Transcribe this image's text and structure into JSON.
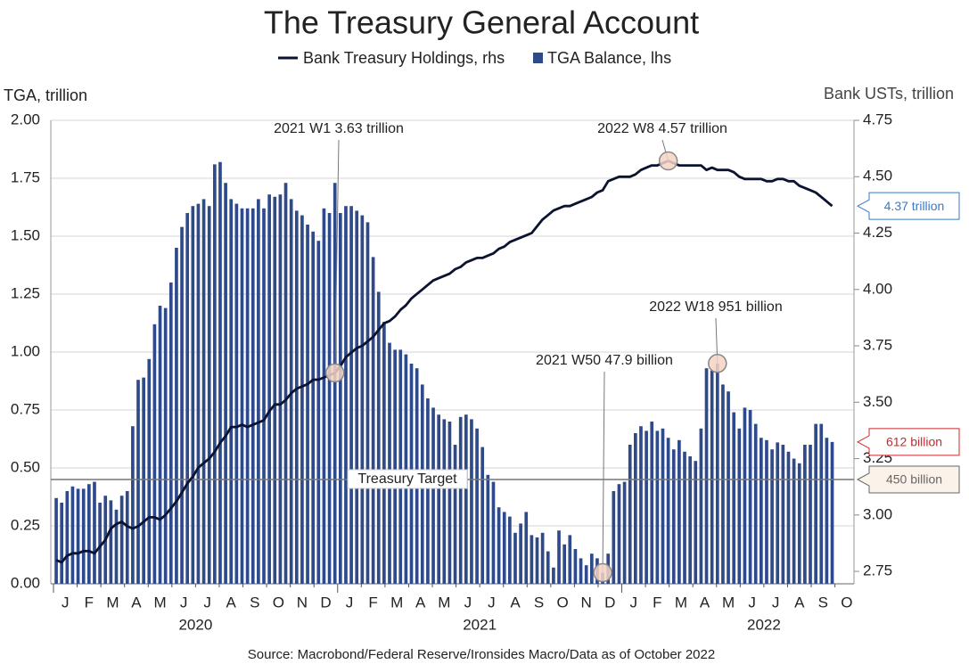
{
  "chart_data": {
    "type": "bar",
    "title": "The Treasury General Account",
    "y_label": "TGA, trillion",
    "y2_label": "Bank USTs, trillion",
    "source": "Source: Macrobond/Federal Reserve/Ironsides Macro/Data as of October 2022",
    "months": [
      "J",
      "F",
      "M",
      "A",
      "M",
      "J",
      "J",
      "A",
      "S",
      "O",
      "N",
      "D",
      "J",
      "F",
      "M",
      "A",
      "M",
      "J",
      "J",
      "A",
      "S",
      "O",
      "N",
      "D",
      "J",
      "F",
      "M",
      "A",
      "M",
      "J",
      "J",
      "A",
      "S",
      "O"
    ],
    "years": [
      "2020",
      "2021",
      "2022"
    ],
    "ylim": [
      0,
      2
    ],
    "yticks": [
      {
        "value": 0,
        "label": "0.00"
      },
      0.25,
      {
        "value": 0.5,
        "label": "0.50"
      },
      0.75,
      {
        "value": 1,
        "label": "1.00"
      },
      1.25,
      {
        "value": 1.5,
        "label": "1.50"
      },
      1.75,
      {
        "value": 2,
        "label": "2.00"
      }
    ],
    "y2lim": [
      2.695,
      4.75
    ],
    "y2ticks": [
      2.75,
      {
        "value": 3,
        "label": "3.00"
      },
      3.25,
      {
        "value": 3.5,
        "label": "3.50"
      },
      3.75,
      {
        "value": 4,
        "label": "4.00"
      },
      4.25,
      {
        "value": 4.5,
        "label": "4.50"
      },
      4.75
    ],
    "grid": true,
    "categories": [
      null,
      null,
      null,
      null,
      null,
      null,
      null,
      null,
      null,
      null,
      null,
      null,
      null,
      null,
      null,
      null,
      null,
      null,
      null,
      null,
      null,
      null,
      null,
      null,
      null,
      null,
      null,
      null,
      null,
      null,
      null,
      null,
      null,
      null,
      null,
      null,
      null,
      null,
      null,
      null,
      null,
      null,
      null,
      null,
      null,
      null,
      null,
      null,
      null,
      null,
      null,
      null,
      null,
      null,
      null,
      null,
      null,
      null,
      null,
      null,
      null,
      null,
      null,
      null,
      null,
      null,
      null,
      null,
      null,
      null,
      null,
      null,
      null,
      null,
      null,
      null,
      null,
      null,
      null,
      null,
      null,
      null,
      null,
      null,
      null,
      null,
      null,
      null,
      null,
      null,
      null,
      null,
      null,
      null,
      null,
      null,
      null,
      null,
      null,
      null,
      null,
      null,
      null,
      null,
      null,
      null,
      null,
      null,
      null,
      null,
      null,
      null,
      null,
      null,
      null,
      null,
      null,
      null,
      null,
      null,
      null,
      null,
      null,
      null,
      null,
      null,
      null,
      null,
      null,
      null,
      null,
      null,
      null,
      null,
      null,
      null,
      null,
      null,
      null,
      null,
      null,
      null,
      null
    ],
    "series": [
      {
        "name": "Bank Treasury Holdings, rhs",
        "type": "line",
        "axis": "y2",
        "color": "#0b1330",
        "values": [
          2.8,
          2.79,
          2.82,
          2.83,
          2.83,
          2.84,
          2.84,
          2.83,
          2.86,
          2.89,
          2.94,
          2.96,
          2.97,
          2.95,
          2.94,
          2.95,
          2.97,
          2.99,
          2.99,
          2.98,
          3.0,
          3.03,
          3.06,
          3.1,
          3.14,
          3.17,
          3.21,
          3.23,
          3.25,
          3.28,
          3.32,
          3.35,
          3.39,
          3.39,
          3.4,
          3.39,
          3.4,
          3.41,
          3.42,
          3.46,
          3.49,
          3.49,
          3.51,
          3.54,
          3.56,
          3.57,
          3.58,
          3.6,
          3.6,
          3.61,
          3.62,
          3.63,
          3.66,
          3.7,
          3.72,
          3.74,
          3.75,
          3.77,
          3.79,
          3.82,
          3.85,
          3.86,
          3.88,
          3.91,
          3.93,
          3.96,
          3.98,
          4.0,
          4.02,
          4.04,
          4.05,
          4.06,
          4.07,
          4.09,
          4.1,
          4.12,
          4.13,
          4.14,
          4.14,
          4.15,
          4.16,
          4.18,
          4.19,
          4.21,
          4.22,
          4.23,
          4.24,
          4.25,
          4.28,
          4.31,
          4.33,
          4.35,
          4.36,
          4.37,
          4.37,
          4.38,
          4.39,
          4.4,
          4.41,
          4.43,
          4.44,
          4.48,
          4.49,
          4.5,
          4.5,
          4.5,
          4.51,
          4.53,
          4.54,
          4.55,
          4.55,
          4.56,
          4.57,
          4.56,
          4.55,
          4.55,
          4.55,
          4.55,
          4.55,
          4.53,
          4.54,
          4.53,
          4.53,
          4.53,
          4.52,
          4.5,
          4.49,
          4.49,
          4.49,
          4.49,
          4.48,
          4.48,
          4.49,
          4.49,
          4.48,
          4.48,
          4.46,
          4.45,
          4.44,
          4.43,
          4.41,
          4.39,
          4.37
        ]
      },
      {
        "name": "TGA Balance, lhs",
        "type": "bar",
        "color": "#2e4a8b",
        "values": [
          0.37,
          0.35,
          0.4,
          0.42,
          0.41,
          0.41,
          0.43,
          0.44,
          0.35,
          0.38,
          0.36,
          0.32,
          0.38,
          0.4,
          0.68,
          0.88,
          0.89,
          0.97,
          1.12,
          1.2,
          1.19,
          1.3,
          1.45,
          1.54,
          1.6,
          1.63,
          1.64,
          1.66,
          1.63,
          1.81,
          1.82,
          1.73,
          1.66,
          1.64,
          1.62,
          1.62,
          1.62,
          1.66,
          1.62,
          1.68,
          1.67,
          1.68,
          1.73,
          1.66,
          1.61,
          1.59,
          1.55,
          1.52,
          1.48,
          1.62,
          1.6,
          1.73,
          1.6,
          1.63,
          1.63,
          1.61,
          1.59,
          1.56,
          1.41,
          1.26,
          1.13,
          1.04,
          1.01,
          1.01,
          0.99,
          0.95,
          0.93,
          0.86,
          0.8,
          0.76,
          0.73,
          0.71,
          0.7,
          0.6,
          0.72,
          0.73,
          0.71,
          0.67,
          0.59,
          0.47,
          0.44,
          0.33,
          0.31,
          0.29,
          0.22,
          0.26,
          0.31,
          0.21,
          0.2,
          0.22,
          0.14,
          0.07,
          0.23,
          0.17,
          0.21,
          0.15,
          0.11,
          0.08,
          0.13,
          0.11,
          0.0479,
          0.13,
          0.4,
          0.43,
          0.44,
          0.6,
          0.65,
          0.68,
          0.66,
          0.7,
          0.66,
          0.67,
          0.63,
          0.58,
          0.62,
          0.57,
          0.55,
          0.53,
          0.67,
          0.93,
          0.92,
          0.951,
          0.86,
          0.83,
          0.74,
          0.67,
          0.76,
          0.75,
          0.69,
          0.63,
          0.62,
          0.58,
          0.61,
          0.6,
          0.57,
          0.54,
          0.52,
          0.6,
          0.6,
          0.69,
          0.69,
          0.63,
          0.612
        ]
      }
    ],
    "target": {
      "label": "Treasury Target",
      "value": 0.45
    },
    "annotations": [
      {
        "label": "2021 W1 3.63 trillion",
        "value": 3.63
      },
      {
        "label": "2022 W8 4.57 trillion",
        "value": 4.57
      },
      {
        "label": "2021 W50 47.9 billion",
        "value": 0.0479
      },
      {
        "label": "2022 W18 951 billion",
        "value": 0.951
      }
    ],
    "callouts": [
      {
        "label": "4.37 trillion",
        "value": 4.37,
        "axis": "y2",
        "color": "#3a78c9"
      },
      {
        "label": "612 billion",
        "value": 0.612,
        "color": "#c8282e"
      },
      {
        "label": "450 billion",
        "value": 0.45,
        "color": "#666666"
      }
    ]
  }
}
